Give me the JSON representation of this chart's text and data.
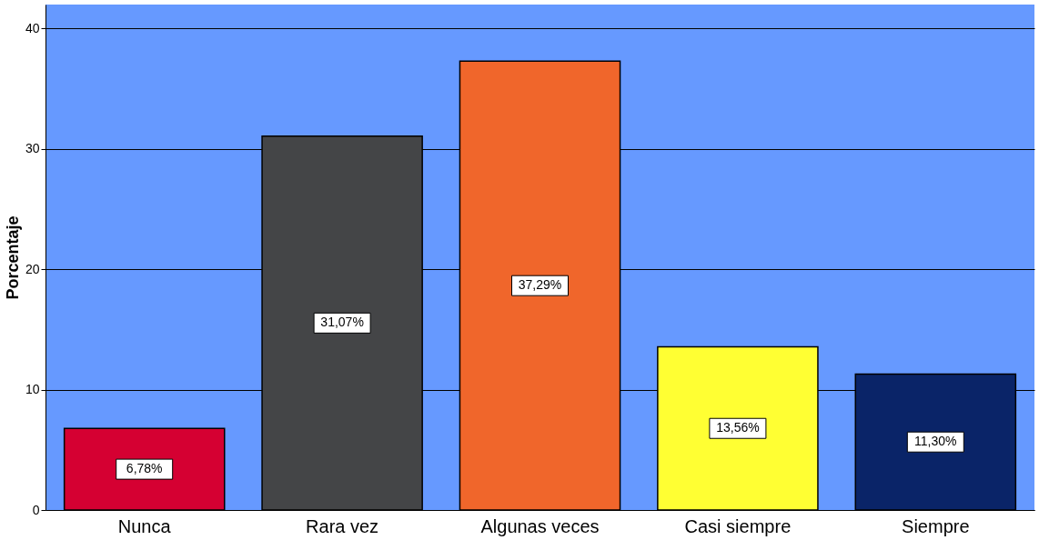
{
  "chart_data": {
    "type": "bar",
    "ylabel": "Porcentaje",
    "categories": [
      "Nunca",
      "Rara vez",
      "Algunas veces",
      "Casi siempre",
      "Siempre"
    ],
    "values": [
      6.78,
      31.07,
      37.29,
      13.56,
      11.3
    ],
    "colors": [
      "#d50032",
      "#444547",
      "#f0662b",
      "#ffff33",
      "#0a2468"
    ],
    "value_labels": [
      "6,78%",
      "31,07%",
      "37,29%",
      "13,56%",
      "11,30%"
    ],
    "ylim": [
      0,
      42
    ],
    "yticks": [
      0,
      10,
      20,
      30,
      40
    ],
    "grid": "y"
  }
}
